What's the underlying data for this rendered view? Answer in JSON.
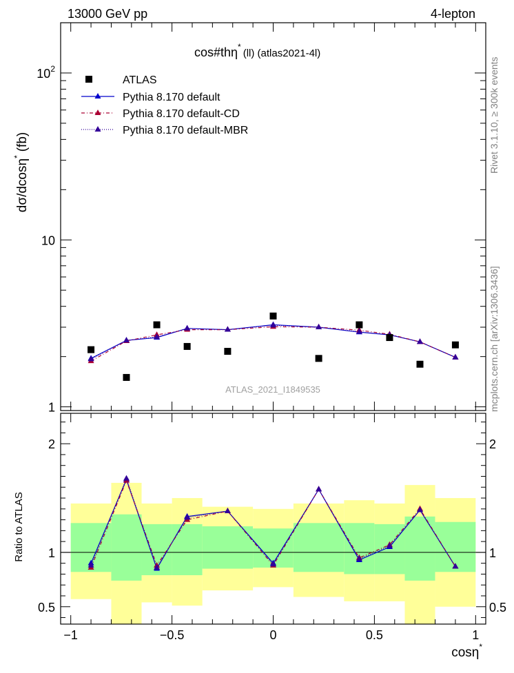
{
  "header": {
    "left": "13000 GeV pp",
    "right": "4-lepton"
  },
  "plot_title": "cos#thη",
  "plot_title_sup": "*",
  "plot_title_suffix": "(ll) (atlas2021-4l)",
  "side_text": {
    "rivet": "Rivet 3.1.10, ≥ 300k events",
    "mcplots": "mcplots.cern.ch [arXiv:1306.3436]"
  },
  "watermark": "ATLAS_2021_I1849535",
  "colors": {
    "data": "#000000",
    "default": "#0000cc",
    "cd": "#aa0033",
    "mbr": "#330099",
    "band_inner": "#99ff99",
    "band_outer": "#ffff99"
  },
  "chart_data": [
    {
      "type": "line",
      "scale": "log",
      "ylabel": "dσ/dcosη",
      "ylabel_sup": "*",
      "ylabel_unit": "(fb)",
      "ylim": [
        0.95,
        200
      ],
      "xlim": [
        -1.05,
        1.05
      ],
      "y_tick_labels": [
        {
          "value": 1,
          "label": "1"
        },
        {
          "value": 10,
          "label": "10"
        },
        {
          "value": 100,
          "label": "10",
          "exp": "2"
        }
      ],
      "x": [
        -0.9,
        -0.725,
        -0.575,
        -0.425,
        -0.225,
        0.0,
        0.225,
        0.425,
        0.575,
        0.725,
        0.9
      ],
      "data_points": [
        2.2,
        1.5,
        3.1,
        2.3,
        2.15,
        3.5,
        1.95,
        3.1,
        2.6,
        1.8,
        2.35
      ],
      "series": [
        {
          "name": "ATLAS",
          "key": "data"
        },
        {
          "name": "Pythia 8.170 default",
          "key": "default",
          "values": [
            1.95,
            2.5,
            2.6,
            2.95,
            2.9,
            3.1,
            3.0,
            2.8,
            2.7,
            2.45,
            1.98
          ]
        },
        {
          "name": "Pythia 8.170 default-CD",
          "key": "cd",
          "values": [
            1.88,
            2.48,
            2.7,
            2.9,
            2.9,
            3.02,
            3.0,
            2.88,
            2.72,
            2.45,
            1.98
          ]
        },
        {
          "name": "Pythia 8.170 default-MBR",
          "key": "mbr",
          "values": [
            1.93,
            2.5,
            2.62,
            2.95,
            2.9,
            3.08,
            3.0,
            2.82,
            2.7,
            2.45,
            1.98
          ]
        }
      ]
    },
    {
      "type": "line",
      "ylabel": "Ratio to ATLAS",
      "xlabel": "cosη",
      "xlabel_sup": "*",
      "ylim": [
        0.34,
        2.28
      ],
      "xlim": [
        -1.05,
        1.05
      ],
      "x_ticks": [
        -1,
        -0.5,
        0,
        0.5,
        1
      ],
      "x_tick_labels": [
        "−1",
        "−0.5",
        "0",
        "0.5",
        "1"
      ],
      "y_ticks": [
        0.5,
        1,
        2
      ],
      "y_tick_labels": [
        "0.5",
        "1",
        "2"
      ],
      "bins": [
        {
          "lo": -1.0,
          "hi": -0.8,
          "inner": [
            0.82,
            1.27
          ],
          "outer": [
            0.57,
            1.45
          ]
        },
        {
          "lo": -0.8,
          "hi": -0.65,
          "inner": [
            0.74,
            1.35
          ],
          "outer": [
            0.34,
            1.64
          ]
        },
        {
          "lo": -0.65,
          "hi": -0.5,
          "inner": [
            0.79,
            1.26
          ],
          "outer": [
            0.54,
            1.45
          ]
        },
        {
          "lo": -0.5,
          "hi": -0.35,
          "inner": [
            0.79,
            1.26
          ],
          "outer": [
            0.51,
            1.5
          ]
        },
        {
          "lo": -0.35,
          "hi": -0.1,
          "inner": [
            0.85,
            1.24
          ],
          "outer": [
            0.65,
            1.42
          ]
        },
        {
          "lo": -0.1,
          "hi": 0.1,
          "inner": [
            0.86,
            1.22
          ],
          "outer": [
            0.68,
            1.4
          ]
        },
        {
          "lo": 0.1,
          "hi": 0.35,
          "inner": [
            0.82,
            1.27
          ],
          "outer": [
            0.59,
            1.45
          ]
        },
        {
          "lo": 0.35,
          "hi": 0.5,
          "inner": [
            0.8,
            1.27
          ],
          "outer": [
            0.55,
            1.48
          ]
        },
        {
          "lo": 0.5,
          "hi": 0.65,
          "inner": [
            0.8,
            1.26
          ],
          "outer": [
            0.55,
            1.45
          ]
        },
        {
          "lo": 0.65,
          "hi": 0.8,
          "inner": [
            0.74,
            1.33
          ],
          "outer": [
            0.34,
            1.62
          ]
        },
        {
          "lo": 0.8,
          "hi": 1.0,
          "inner": [
            0.82,
            1.28
          ],
          "outer": [
            0.5,
            1.5
          ]
        }
      ],
      "x": [
        -0.9,
        -0.725,
        -0.575,
        -0.425,
        -0.225,
        0.0,
        0.225,
        0.425,
        0.575,
        0.725,
        0.9
      ],
      "series": [
        {
          "name": "Pythia 8.170 default",
          "key": "default",
          "values": [
            0.9,
            1.67,
            0.85,
            1.33,
            1.38,
            0.9,
            1.58,
            0.93,
            1.05,
            1.39,
            0.87
          ]
        },
        {
          "name": "Pythia 8.170 default-CD",
          "key": "cd",
          "values": [
            0.86,
            1.66,
            0.88,
            1.3,
            1.38,
            0.88,
            1.58,
            0.95,
            1.07,
            1.4,
            0.87
          ]
        },
        {
          "name": "Pythia 8.170 default-MBR",
          "key": "mbr",
          "values": [
            0.88,
            1.68,
            0.86,
            1.32,
            1.38,
            0.89,
            1.58,
            0.94,
            1.06,
            1.39,
            0.87
          ]
        }
      ]
    }
  ]
}
